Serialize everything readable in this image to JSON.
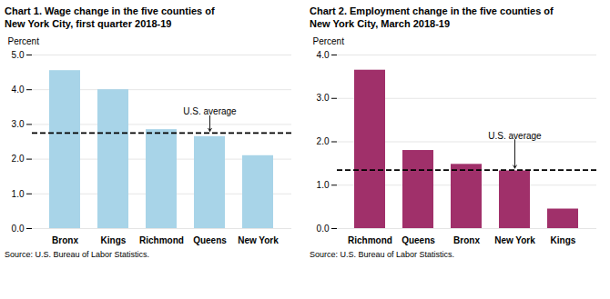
{
  "chart_data": [
    {
      "type": "bar",
      "title": "Chart 1. Wage change in the five counties of\nNew York City, first quarter 2018-19",
      "ylabel": "Percent",
      "categories": [
        "Bronx",
        "Kings",
        "Richmond",
        "Queens",
        "New York"
      ],
      "values": [
        4.55,
        4.0,
        2.85,
        2.65,
        2.1
      ],
      "color": "#a8d4e8",
      "ylim": [
        0,
        5
      ],
      "yticks": [
        0,
        1,
        2,
        3,
        4,
        5
      ],
      "grid": true,
      "caption": "Source: U.S. Bureau of Labor Statistics.",
      "reference_lines": [
        {
          "value": 2.75,
          "label": "U.S. average",
          "line_style": "dashed",
          "label_x": "Queens",
          "label_y": 3.25
        }
      ]
    },
    {
      "type": "bar",
      "title": "Chart 2. Employment change in the five counties of\nNew York City, March 2018-19",
      "ylabel": "Percent",
      "categories": [
        "Richmond",
        "Queens",
        "Bronx",
        "New York",
        "Kings"
      ],
      "values": [
        3.65,
        1.8,
        1.48,
        1.33,
        0.45
      ],
      "color": "#a0306a",
      "ylim": [
        0,
        4
      ],
      "yticks": [
        0,
        1,
        2,
        3,
        4
      ],
      "grid": true,
      "caption": "Source: U.S. Bureau of Labor Statistics.",
      "reference_lines": [
        {
          "value": 1.35,
          "label": "U.S. average",
          "line_style": "dashed",
          "label_x": "New York",
          "label_y": 2.05
        }
      ]
    }
  ]
}
